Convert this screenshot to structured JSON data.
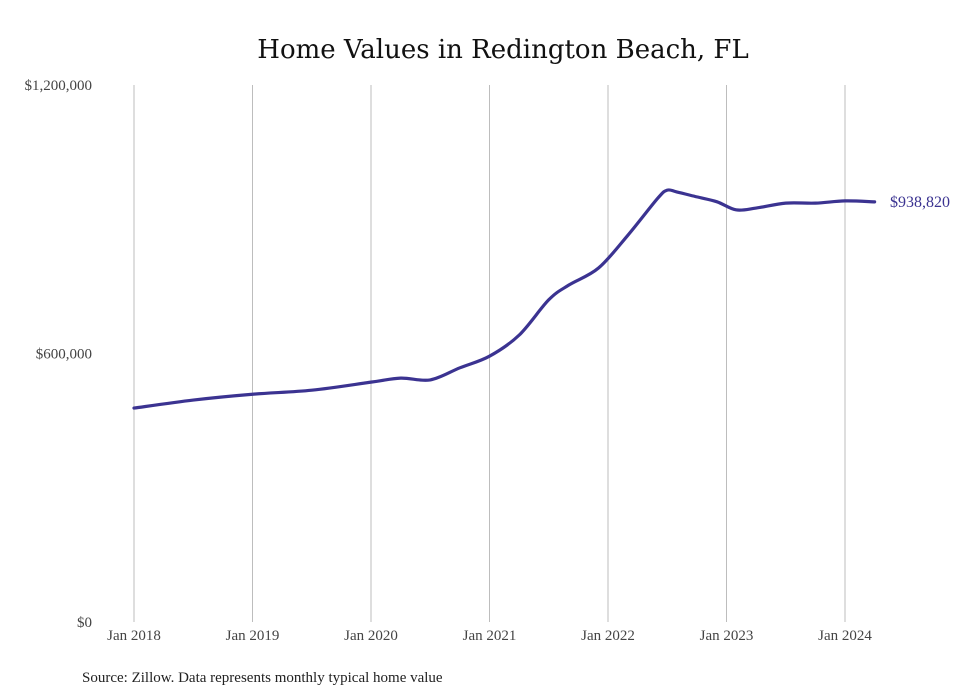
{
  "chart_data": {
    "type": "line",
    "title": "Home Values in Redington Beach, FL",
    "xlabel": "",
    "ylabel": "",
    "ylim": [
      0,
      1200000
    ],
    "y_ticks": [
      {
        "value": 0,
        "label": "$0"
      },
      {
        "value": 600000,
        "label": "$600,000"
      },
      {
        "value": 1200000,
        "label": "$1,200,000"
      }
    ],
    "x_ticks": [
      {
        "value": 2018,
        "label": "Jan 2018"
      },
      {
        "value": 2019,
        "label": "Jan 2019"
      },
      {
        "value": 2020,
        "label": "Jan 2020"
      },
      {
        "value": 2021,
        "label": "Jan 2021"
      },
      {
        "value": 2022,
        "label": "Jan 2022"
      },
      {
        "value": 2023,
        "label": "Jan 2023"
      },
      {
        "value": 2024,
        "label": "Jan 2024"
      }
    ],
    "grid": "vertical",
    "series": [
      {
        "name": "Typical home value",
        "color": "#3b3391",
        "x": [
          2018.0,
          2018.5,
          2019.0,
          2019.5,
          2020.0,
          2020.25,
          2020.5,
          2020.75,
          2021.0,
          2021.25,
          2021.5,
          2021.67,
          2021.92,
          2022.17,
          2022.42,
          2022.5,
          2022.58,
          2022.75,
          2022.92,
          2023.08,
          2023.25,
          2023.5,
          2023.75,
          2024.0,
          2024.25
        ],
        "values": [
          478000,
          496000,
          509000,
          518000,
          536000,
          545000,
          541000,
          568000,
          594000,
          641000,
          720000,
          753000,
          791000,
          865000,
          947000,
          965000,
          961000,
          950000,
          939000,
          921000,
          925000,
          936000,
          936000,
          941000,
          938820
        ]
      }
    ],
    "end_label": "$938,820"
  },
  "source": "Source: Zillow. Data represents monthly typical home value"
}
